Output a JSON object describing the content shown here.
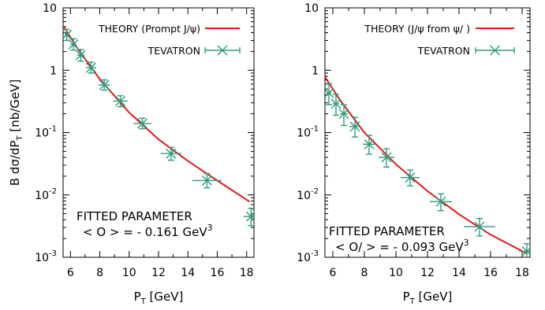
{
  "chart_data": [
    {
      "type": "scatter",
      "xlabel_main": "P",
      "xlabel_sub": "T",
      "xlabel_unit": " [GeV]",
      "ylabel_parts": {
        "a": "B d",
        "b": "σ",
        "c": "/dP",
        "sub": "T",
        "d": " [nb/GeV]"
      },
      "xlim": [
        5.5,
        18.5
      ],
      "ylim": [
        0.001,
        10
      ],
      "yscale": "log",
      "xticks": [
        "6",
        "8",
        "10",
        "12",
        "14",
        "16",
        "18"
      ],
      "xtick_values": [
        6,
        8,
        10,
        12,
        14,
        16,
        18
      ],
      "yticks": [
        {
          "value": 10,
          "base": "10",
          "exp": ""
        },
        {
          "value": 1,
          "base": "1",
          "exp": ""
        },
        {
          "value": 0.1,
          "base": "10",
          "exp": "-1"
        },
        {
          "value": 0.01,
          "base": "10",
          "exp": "-2"
        },
        {
          "value": 0.001,
          "base": "10",
          "exp": "-3"
        }
      ],
      "legend": [
        {
          "label": "THEORY (Prompt J/ψ)",
          "style": "line"
        },
        {
          "label": "TEVATRON",
          "style": "errorbar"
        }
      ],
      "legend_placement": "top-right",
      "annotation": {
        "line1": "FITTED PARAMETER",
        "line2": "< O > = - 0.161 GeV",
        "line2_sup": "3"
      },
      "theory_curve": {
        "x": [
          5.5,
          6.5,
          8,
          10,
          12,
          14,
          16,
          18.2
        ],
        "y": [
          5.2,
          2.2,
          0.72,
          0.21,
          0.078,
          0.035,
          0.017,
          0.0078
        ]
      },
      "data_points": {
        "x": [
          5.75,
          6.2,
          6.7,
          7.4,
          8.3,
          9.4,
          10.9,
          12.85,
          15.3,
          18.3
        ],
        "y": [
          3.7,
          2.6,
          1.75,
          1.1,
          0.58,
          0.32,
          0.14,
          0.046,
          0.017,
          0.0045
        ],
        "err_lo": [
          0.7,
          0.5,
          0.35,
          0.2,
          0.1,
          0.06,
          0.025,
          0.01,
          0.004,
          0.0013
        ],
        "err_hi": [
          0.8,
          0.6,
          0.4,
          0.25,
          0.12,
          0.07,
          0.03,
          0.012,
          0.005,
          0.0016
        ],
        "x_halfwidth": [
          0.15,
          0.2,
          0.25,
          0.35,
          0.4,
          0.5,
          0.6,
          0.7,
          1.0,
          0.5
        ]
      },
      "colors": {
        "theory": "#e31a1c",
        "data": "#2e9c7c"
      }
    },
    {
      "type": "scatter",
      "xlabel_main": "P",
      "xlabel_sub": "T",
      "xlabel_unit": " [GeV]",
      "xlim": [
        5.5,
        18.5
      ],
      "ylim": [
        0.001,
        10
      ],
      "yscale": "log",
      "xticks": [
        "6",
        "8",
        "10",
        "12",
        "14",
        "16",
        "18"
      ],
      "xtick_values": [
        6,
        8,
        10,
        12,
        14,
        16,
        18
      ],
      "yticks": [
        {
          "value": 10,
          "base": "10",
          "exp": ""
        },
        {
          "value": 1,
          "base": "1",
          "exp": ""
        },
        {
          "value": 0.1,
          "base": "10",
          "exp": "-1"
        },
        {
          "value": 0.01,
          "base": "10",
          "exp": "-2"
        },
        {
          "value": 0.001,
          "base": "10",
          "exp": "-3"
        }
      ],
      "legend": [
        {
          "label": "THEORY (J/ψ from ψ/ )",
          "style": "line"
        },
        {
          "label": "TEVATRON",
          "style": "errorbar"
        }
      ],
      "legend_placement": "top-right",
      "annotation": {
        "line1": "FITTED PARAMETER",
        "line2": "< O/ > = - 0.093 GeV",
        "line2_sup": "3"
      },
      "theory_curve": {
        "x": [
          5.5,
          6.5,
          8,
          10,
          12,
          14,
          16,
          18.3
        ],
        "y": [
          0.78,
          0.32,
          0.1,
          0.031,
          0.0115,
          0.0049,
          0.0023,
          0.00115
        ]
      },
      "data_points": {
        "x": [
          5.75,
          6.2,
          6.7,
          7.4,
          8.3,
          9.4,
          10.9,
          12.85,
          15.3,
          18.3
        ],
        "y": [
          0.43,
          0.29,
          0.2,
          0.125,
          0.065,
          0.04,
          0.019,
          0.0078,
          0.0031,
          0.00125
        ],
        "err_lo": [
          0.15,
          0.1,
          0.07,
          0.04,
          0.02,
          0.012,
          0.005,
          0.0022,
          0.0009,
          0.0003
        ],
        "err_hi": [
          0.18,
          0.12,
          0.08,
          0.05,
          0.025,
          0.015,
          0.006,
          0.0026,
          0.0011,
          0.0004
        ],
        "x_halfwidth": [
          0.15,
          0.2,
          0.25,
          0.35,
          0.4,
          0.5,
          0.6,
          0.7,
          1.0,
          0.5
        ]
      },
      "colors": {
        "theory": "#e31a1c",
        "data": "#2e9c7c"
      }
    }
  ]
}
